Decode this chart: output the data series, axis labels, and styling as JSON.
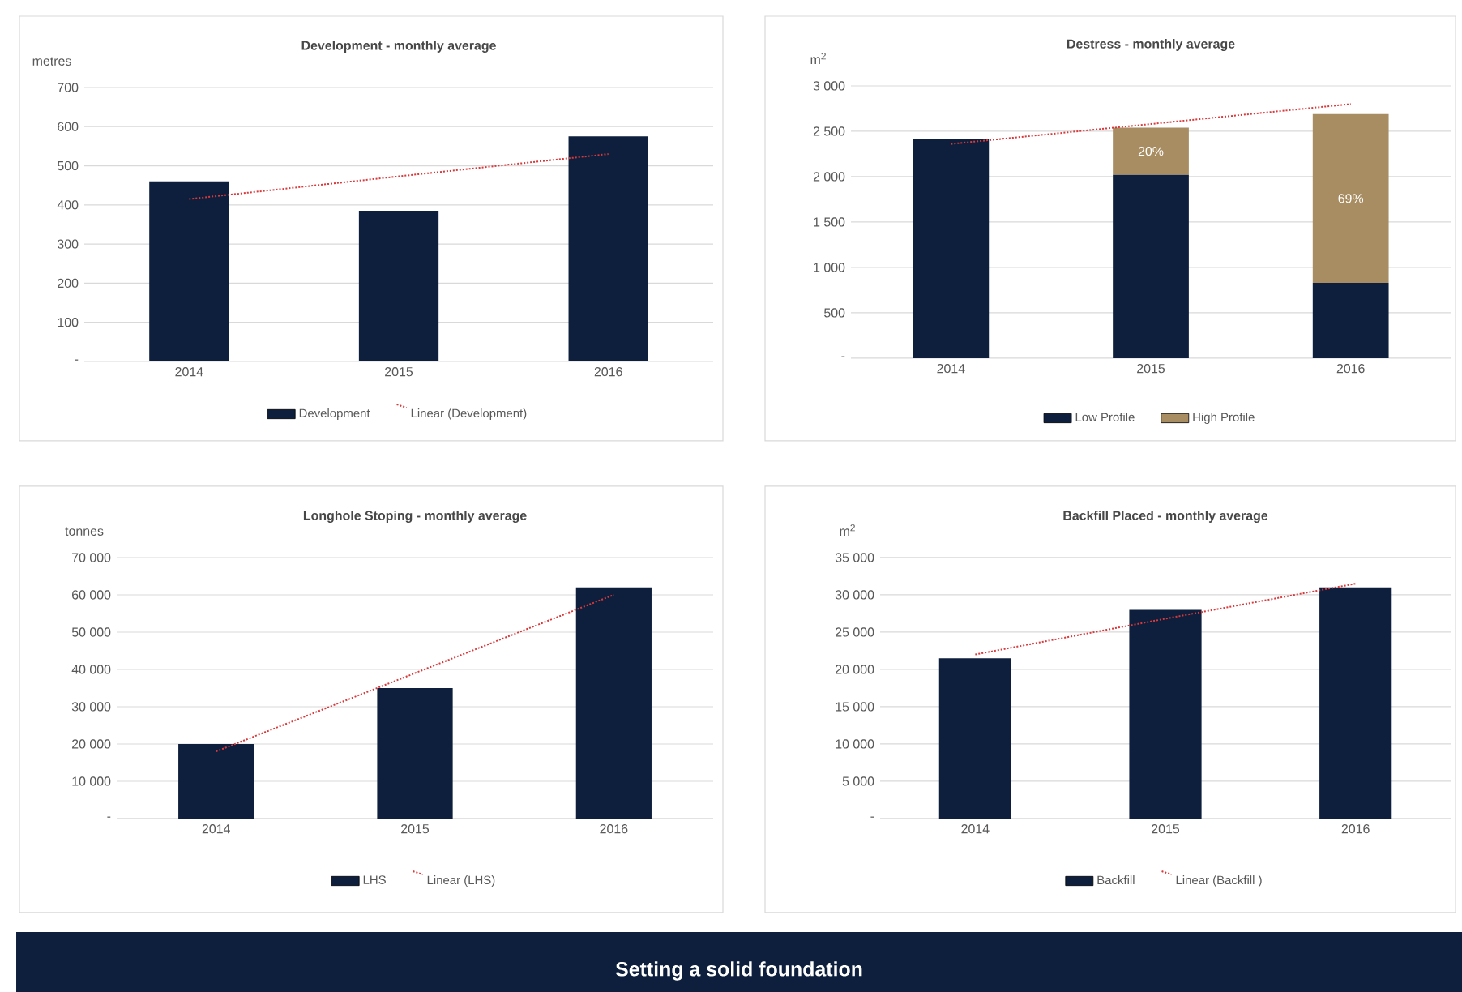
{
  "chart_data": [
    {
      "type": "bar",
      "title": "Development - monthly average",
      "ylabel": "metres",
      "categories": [
        "2014",
        "2015",
        "2016"
      ],
      "ylim": [
        0,
        700
      ],
      "yticks": [
        {
          "value": 0,
          "label": "-"
        },
        100,
        200,
        300,
        400,
        500,
        600,
        700
      ],
      "grid": "y",
      "legend": "bottom",
      "series": [
        {
          "name": "Development",
          "color": "#0d1f3c",
          "values": [
            460,
            385,
            575
          ]
        },
        {
          "name": "Linear (Development)",
          "type": "line",
          "color": "#d9393b",
          "line_style": "dotted",
          "values": [
            415,
            473,
            530
          ]
        }
      ]
    },
    {
      "type": "bar",
      "title": "Destress  - monthly average",
      "ylabel": "m$^{2}$",
      "categories": [
        "2014",
        "2015",
        "2016"
      ],
      "ylim": [
        0,
        3000
      ],
      "yticks": [
        {
          "value": 0,
          "label": "-"
        },
        500,
        {
          "value": 1000,
          "label": "1 000"
        },
        {
          "value": 1500,
          "label": "1 500"
        },
        {
          "value": 2000,
          "label": "2 000"
        },
        {
          "value": 2500,
          "label": "2 500"
        },
        {
          "value": 3000,
          "label": "3 000"
        }
      ],
      "grid": "y",
      "legend": "bottom",
      "stacked": true,
      "series": [
        {
          "name": "Low Profile",
          "color": "#0d1f3c",
          "values": [
            2420,
            2020,
            830
          ]
        },
        {
          "name": "High Profile",
          "color": "#a88d62",
          "values": [
            0,
            520,
            1860
          ]
        },
        {
          "type": "line",
          "color": "#d9393b",
          "line_style": "dotted",
          "values": [
            2360,
            2580,
            2800
          ]
        }
      ],
      "annotations": [
        "20%",
        "69%"
      ]
    },
    {
      "type": "bar",
      "title": "Longhole Stoping - monthly average",
      "ylabel": "tonnes",
      "categories": [
        "2014",
        "2015",
        "2016"
      ],
      "ylim": [
        0,
        70000
      ],
      "yticks": [
        {
          "value": 0,
          "label": "-"
        },
        {
          "value": 10000,
          "label": "10 000"
        },
        {
          "value": 20000,
          "label": "20 000"
        },
        {
          "value": 30000,
          "label": "30 000"
        },
        {
          "value": 40000,
          "label": "40 000"
        },
        {
          "value": 50000,
          "label": "50 000"
        },
        {
          "value": 60000,
          "label": "60 000"
        },
        {
          "value": 70000,
          "label": "70 000"
        }
      ],
      "grid": "y",
      "legend": "bottom",
      "series": [
        {
          "name": "LHS",
          "color": "#0d1f3c",
          "values": [
            20000,
            35000,
            62000
          ]
        },
        {
          "name": "Linear (LHS)",
          "type": "line",
          "color": "#d9393b",
          "line_style": "dotted",
          "values": [
            18000,
            39000,
            60000
          ]
        }
      ]
    },
    {
      "type": "bar",
      "title": "Backfill Placed  - monthly average",
      "ylabel": "m$^{2}$",
      "categories": [
        "2014",
        "2015",
        "2016"
      ],
      "ylim": [
        0,
        35000
      ],
      "yticks": [
        {
          "value": 0,
          "label": "-"
        },
        {
          "value": 5000,
          "label": "5 000"
        },
        {
          "value": 10000,
          "label": "10 000"
        },
        {
          "value": 15000,
          "label": "15 000"
        },
        {
          "value": 20000,
          "label": "20 000"
        },
        {
          "value": 25000,
          "label": "25 000"
        },
        {
          "value": 30000,
          "label": "30 000"
        },
        {
          "value": 35000,
          "label": "35 000"
        }
      ],
      "grid": "y",
      "legend": "bottom",
      "series": [
        {
          "name": "Backfill",
          "color": "#0d1f3c",
          "values": [
            21500,
            28000,
            31000
          ]
        },
        {
          "name": "Linear (Backfill )",
          "type": "line",
          "color": "#d9393b",
          "line_style": "dotted",
          "values": [
            22000,
            26800,
            31500
          ]
        }
      ]
    },
    {
      "type": "other",
      "title": "Setting a solid foundation",
      "color": "#0d1f3c"
    }
  ]
}
